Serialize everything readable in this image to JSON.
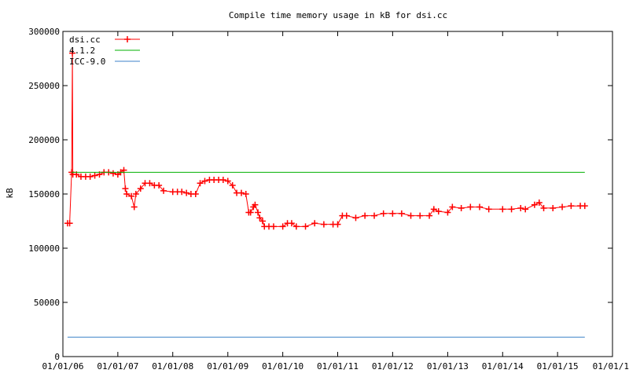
{
  "chart_data": {
    "type": "line",
    "title": "Compile time memory usage in kB for dsi.cc",
    "ylabel": "kB",
    "xlabel": "",
    "ylim": [
      0,
      300000
    ],
    "y_ticks": [
      0,
      50000,
      100000,
      150000,
      200000,
      250000,
      300000
    ],
    "y_tick_labels": [
      "0",
      "50000",
      "100000",
      "150000",
      "200000",
      "250000",
      "300000"
    ],
    "xlim": [
      "2006-01-01",
      "2016-01-01"
    ],
    "x_ticks": [
      "2006-01-01",
      "2007-01-01",
      "2008-01-01",
      "2009-01-01",
      "2010-01-01",
      "2011-01-01",
      "2012-01-01",
      "2013-01-01",
      "2014-01-01",
      "2015-01-01",
      "2016-01-01"
    ],
    "x_tick_labels": [
      "01/01/06",
      "01/01/07",
      "01/01/08",
      "01/01/09",
      "01/01/10",
      "01/01/11",
      "01/01/12",
      "01/01/13",
      "01/01/14",
      "01/01/15",
      "01/01/1"
    ],
    "grid": false,
    "legend_position": "top-left",
    "series": [
      {
        "name": "dsi.cc",
        "color": "#ff0000",
        "marker": "plus",
        "points": [
          [
            "2006-02-01",
            123000
          ],
          [
            "2006-02-15",
            123000
          ],
          [
            "2006-02-28",
            170000
          ],
          [
            "2006-03-05",
            280000
          ],
          [
            "2006-03-08",
            168000
          ],
          [
            "2006-04-01",
            168000
          ],
          [
            "2006-05-01",
            166000
          ],
          [
            "2006-06-01",
            166000
          ],
          [
            "2006-07-01",
            166000
          ],
          [
            "2006-08-01",
            167000
          ],
          [
            "2006-09-01",
            168000
          ],
          [
            "2006-10-01",
            170000
          ],
          [
            "2006-11-01",
            170000
          ],
          [
            "2006-12-01",
            169000
          ],
          [
            "2007-01-01",
            168000
          ],
          [
            "2007-01-20",
            170000
          ],
          [
            "2007-02-10",
            172000
          ],
          [
            "2007-02-20",
            155000
          ],
          [
            "2007-03-01",
            150000
          ],
          [
            "2007-04-01",
            148000
          ],
          [
            "2007-04-20",
            138000
          ],
          [
            "2007-05-01",
            150000
          ],
          [
            "2007-06-01",
            155000
          ],
          [
            "2007-07-01",
            160000
          ],
          [
            "2007-08-01",
            160000
          ],
          [
            "2007-09-01",
            158000
          ],
          [
            "2007-10-01",
            158000
          ],
          [
            "2007-11-01",
            153000
          ],
          [
            "2008-01-01",
            152000
          ],
          [
            "2008-02-01",
            152000
          ],
          [
            "2008-03-01",
            152000
          ],
          [
            "2008-04-01",
            151000
          ],
          [
            "2008-05-01",
            150000
          ],
          [
            "2008-06-01",
            150000
          ],
          [
            "2008-07-01",
            160000
          ],
          [
            "2008-08-01",
            162000
          ],
          [
            "2008-09-01",
            163000
          ],
          [
            "2008-10-01",
            163000
          ],
          [
            "2008-11-01",
            163000
          ],
          [
            "2008-12-01",
            163000
          ],
          [
            "2009-01-01",
            162000
          ],
          [
            "2009-02-01",
            158000
          ],
          [
            "2009-03-01",
            151000
          ],
          [
            "2009-04-01",
            151000
          ],
          [
            "2009-05-01",
            150000
          ],
          [
            "2009-05-20",
            133000
          ],
          [
            "2009-06-01",
            133000
          ],
          [
            "2009-06-20",
            138000
          ],
          [
            "2009-07-01",
            140000
          ],
          [
            "2009-07-20",
            133000
          ],
          [
            "2009-08-01",
            128000
          ],
          [
            "2009-08-20",
            125000
          ],
          [
            "2009-09-01",
            120000
          ],
          [
            "2009-10-01",
            120000
          ],
          [
            "2009-11-01",
            120000
          ],
          [
            "2010-01-01",
            120000
          ],
          [
            "2010-02-01",
            123000
          ],
          [
            "2010-03-01",
            123000
          ],
          [
            "2010-04-01",
            120000
          ],
          [
            "2010-06-01",
            120000
          ],
          [
            "2010-08-01",
            123000
          ],
          [
            "2010-10-01",
            122000
          ],
          [
            "2010-12-01",
            122000
          ],
          [
            "2011-01-01",
            122000
          ],
          [
            "2011-02-01",
            130000
          ],
          [
            "2011-03-01",
            130000
          ],
          [
            "2011-05-01",
            128000
          ],
          [
            "2011-07-01",
            130000
          ],
          [
            "2011-09-01",
            130000
          ],
          [
            "2011-11-01",
            132000
          ],
          [
            "2012-01-01",
            132000
          ],
          [
            "2012-03-01",
            132000
          ],
          [
            "2012-05-01",
            130000
          ],
          [
            "2012-07-01",
            130000
          ],
          [
            "2012-09-01",
            130000
          ],
          [
            "2012-10-01",
            136000
          ],
          [
            "2012-11-01",
            134000
          ],
          [
            "2013-01-01",
            133000
          ],
          [
            "2013-02-01",
            138000
          ],
          [
            "2013-04-01",
            137000
          ],
          [
            "2013-06-01",
            138000
          ],
          [
            "2013-08-01",
            138000
          ],
          [
            "2013-10-01",
            136000
          ],
          [
            "2014-01-01",
            136000
          ],
          [
            "2014-03-01",
            136000
          ],
          [
            "2014-05-01",
            137000
          ],
          [
            "2014-06-01",
            136000
          ],
          [
            "2014-08-01",
            140000
          ],
          [
            "2014-09-01",
            142000
          ],
          [
            "2014-10-01",
            137000
          ],
          [
            "2014-12-01",
            137000
          ],
          [
            "2015-02-01",
            138000
          ],
          [
            "2015-04-01",
            139000
          ],
          [
            "2015-06-01",
            139000
          ],
          [
            "2015-07-01",
            139000
          ]
        ]
      },
      {
        "name": "4.1.2",
        "color": "#00b000",
        "marker": "none",
        "points": [
          [
            "2006-02-28",
            170000
          ],
          [
            "2015-07-01",
            170000
          ]
        ]
      },
      {
        "name": "ICC-9.0",
        "color": "#3c82c8",
        "marker": "none",
        "points": [
          [
            "2006-02-01",
            18000
          ],
          [
            "2015-07-01",
            18000
          ]
        ]
      }
    ]
  }
}
